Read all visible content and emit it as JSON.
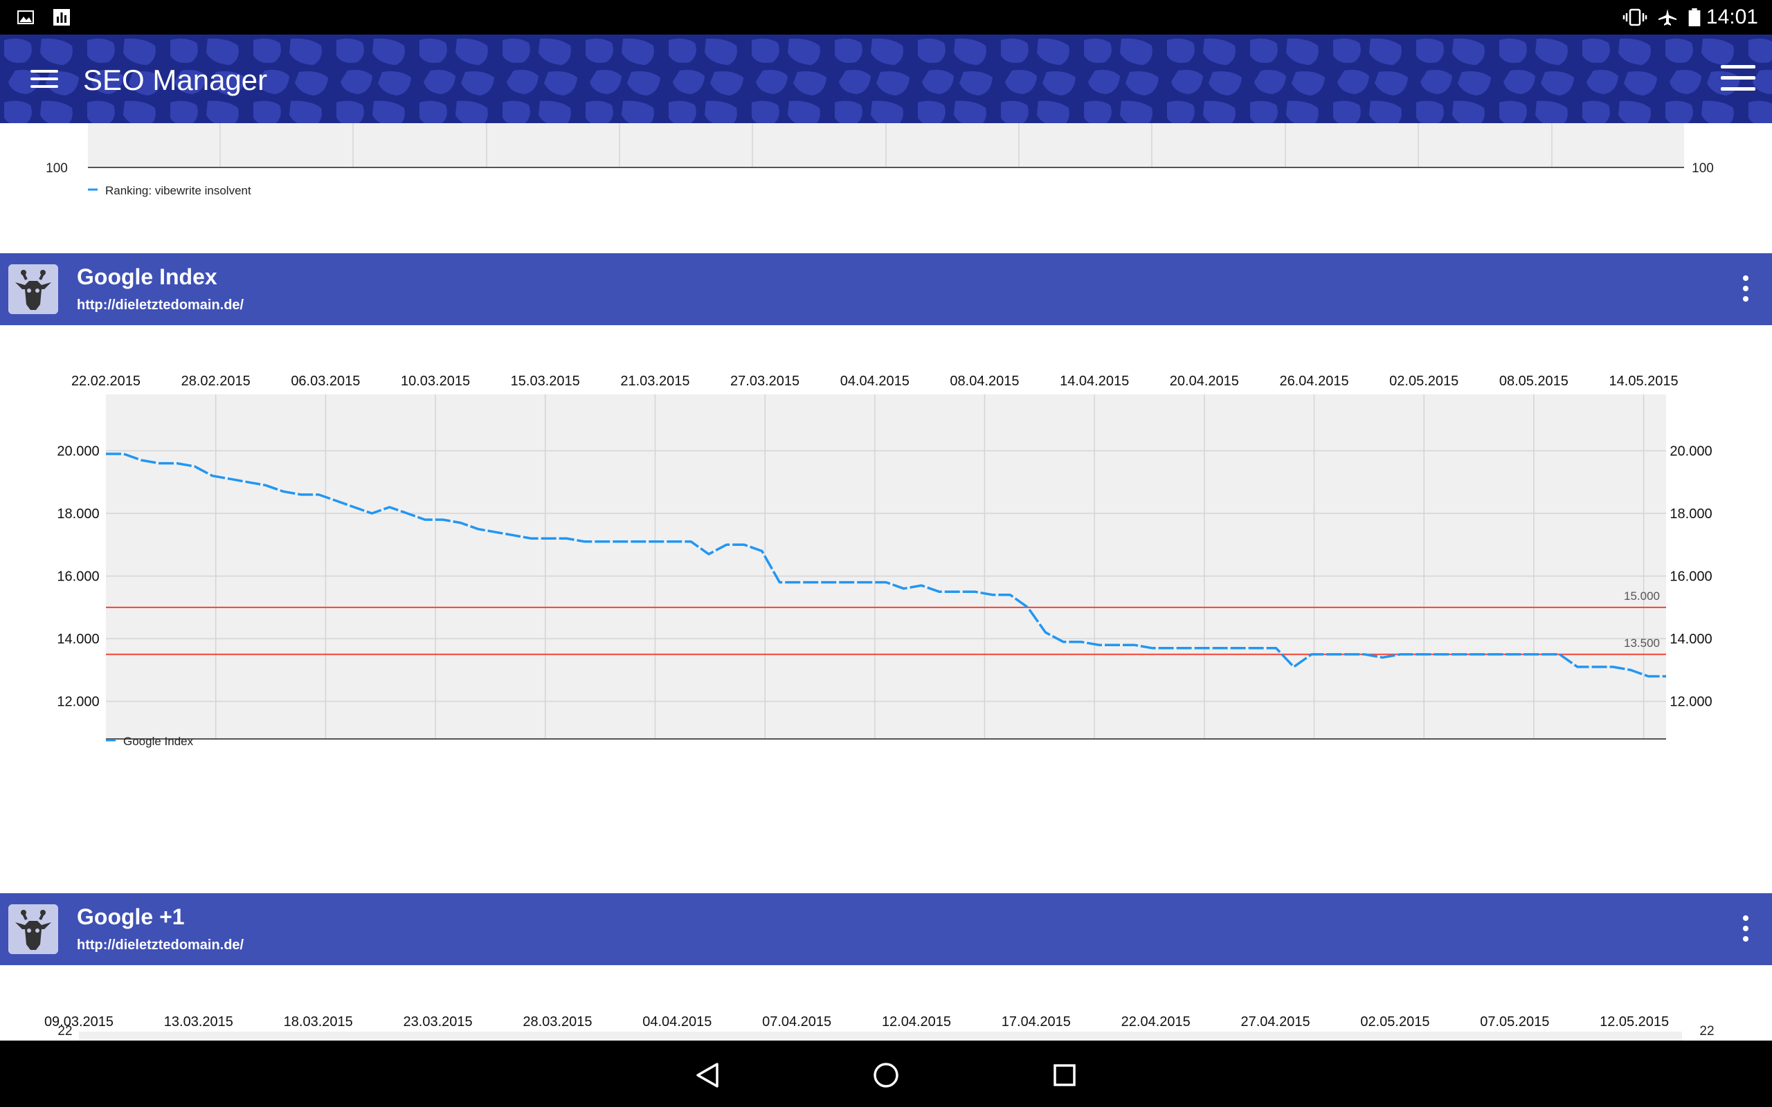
{
  "status_bar": {
    "time": "14:01"
  },
  "app_bar": {
    "title": "SEO Manager"
  },
  "top_chart": {
    "axis_left": "100",
    "axis_right": "100",
    "legend": "Ranking: vibewrite insolvent",
    "series_color": "#2196f3"
  },
  "cards": [
    {
      "title": "Google Index",
      "url": "http://dieletztedomain.de/"
    },
    {
      "title": "Google +1",
      "url": "http://dieletztedomain.de/"
    }
  ],
  "chart_data": [
    {
      "type": "line",
      "title": "Google Index",
      "legend": [
        "Google Index"
      ],
      "x_tick_labels": [
        "22.02.2015",
        "28.02.2015",
        "06.03.2015",
        "10.03.2015",
        "15.03.2015",
        "21.03.2015",
        "27.03.2015",
        "04.04.2015",
        "08.04.2015",
        "14.04.2015",
        "20.04.2015",
        "26.04.2015",
        "02.05.2015",
        "08.05.2015",
        "14.05.2015"
      ],
      "y_tick_labels": [
        "20.000",
        "18.000",
        "16.000",
        "14.000",
        "12.000"
      ],
      "y_ticks": [
        20000,
        18000,
        16000,
        14000,
        12000
      ],
      "ylim": [
        10800,
        21800
      ],
      "reference_lines": [
        {
          "value": 15000,
          "label": "15.000",
          "color": "#f44336"
        },
        {
          "value": 13500,
          "label": "13.500",
          "color": "#f44336"
        }
      ],
      "series": [
        {
          "name": "Google Index",
          "color": "#2196f3",
          "values": [
            19900,
            19900,
            19700,
            19600,
            19600,
            19500,
            19200,
            19100,
            19000,
            18900,
            18700,
            18600,
            18600,
            18400,
            18200,
            18000,
            18200,
            18000,
            17800,
            17800,
            17700,
            17500,
            17400,
            17300,
            17200,
            17200,
            17200,
            17100,
            17100,
            17100,
            17100,
            17100,
            17100,
            17100,
            16700,
            17000,
            17000,
            16800,
            15800,
            15800,
            15800,
            15800,
            15800,
            15800,
            15800,
            15600,
            15700,
            15500,
            15500,
            15500,
            15400,
            15400,
            15000,
            14200,
            13900,
            13900,
            13800,
            13800,
            13800,
            13700,
            13700,
            13700,
            13700,
            13700,
            13700,
            13700,
            13700,
            13100,
            13500,
            13500,
            13500,
            13500,
            13400,
            13500,
            13500,
            13500,
            13500,
            13500,
            13500,
            13500,
            13500,
            13500,
            13500,
            13100,
            13100,
            13100,
            13000,
            12800,
            12800
          ]
        }
      ],
      "grid": true
    },
    {
      "type": "line",
      "title": "Google +1",
      "x_tick_labels": [
        "09.03.2015",
        "13.03.2015",
        "18.03.2015",
        "23.03.2015",
        "28.03.2015",
        "04.04.2015",
        "07.04.2015",
        "12.04.2015",
        "17.04.2015",
        "22.04.2015",
        "27.04.2015",
        "02.05.2015",
        "07.05.2015",
        "12.05.2015"
      ],
      "y_tick_labels": [
        "22"
      ],
      "grid": true
    }
  ],
  "nav_bar": {
    "back": "back-icon",
    "home": "home-icon",
    "recents": "recents-icon"
  }
}
